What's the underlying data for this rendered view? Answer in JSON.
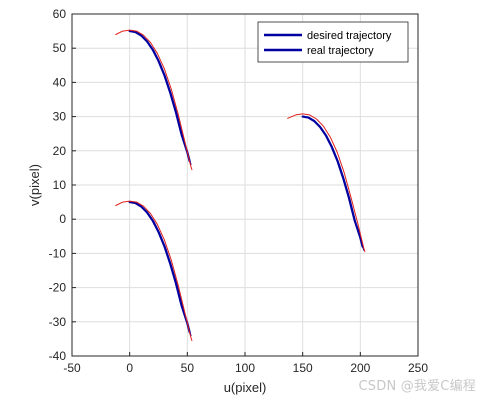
{
  "chart_data": {
    "type": "line",
    "title": "",
    "xlabel": "u(pixel)",
    "ylabel": "v(pixel)",
    "xlim": [
      -50,
      250
    ],
    "ylim": [
      -40,
      60
    ],
    "xticks": [
      -50,
      0,
      50,
      100,
      150,
      200,
      250
    ],
    "yticks": [
      -40,
      -30,
      -20,
      -10,
      0,
      10,
      20,
      30,
      40,
      50,
      60
    ],
    "grid": true,
    "legend_position": "top-right",
    "series": [
      {
        "name": "desired trajectory",
        "color": "#0000a0",
        "segments": [
          {
            "x": [
              0,
              5,
              10,
              15,
              20,
              25,
              30,
              35,
              40,
              45,
              50,
              52
            ],
            "y": [
              55,
              54.7,
              53.7,
              52,
              49.6,
              46.3,
              42.2,
              37.2,
              31.4,
              24.7,
              19.6,
              17
            ]
          },
          {
            "x": [
              0,
              5,
              10,
              15,
              20,
              25,
              30,
              35,
              40,
              45,
              50,
              52
            ],
            "y": [
              5,
              4.7,
              3.7,
              2,
              -0.4,
              -3.7,
              -7.8,
              -12.8,
              -18.6,
              -25.3,
              -30.4,
              -33
            ]
          },
          {
            "x": [
              150,
              155,
              160,
              165,
              170,
              175,
              180,
              185,
              190,
              195,
              200,
              202
            ],
            "y": [
              30,
              29.7,
              28.7,
              27,
              24.6,
              21.3,
              17.2,
              12.2,
              6.4,
              -0.3,
              -5.4,
              -8
            ]
          }
        ]
      },
      {
        "name": "real trajectory",
        "color": "#0000a0",
        "segments": [
          {
            "x": [
              1,
              6,
              11,
              16,
              21,
              26,
              31,
              36,
              41,
              46,
              51,
              53
            ],
            "y": [
              55,
              54.6,
              53.5,
              51.7,
              49.2,
              45.8,
              41.6,
              36.5,
              30.6,
              23.8,
              18.5,
              16
            ]
          },
          {
            "x": [
              1,
              6,
              11,
              16,
              21,
              26,
              31,
              36,
              41,
              46,
              51,
              53
            ],
            "y": [
              5,
              4.6,
              3.5,
              1.7,
              -0.8,
              -4.2,
              -8.4,
              -13.5,
              -19.4,
              -26.2,
              -31.5,
              -34
            ]
          },
          {
            "x": [
              151,
              156,
              161,
              166,
              171,
              176,
              181,
              186,
              191,
              196,
              201,
              203
            ],
            "y": [
              30,
              29.6,
              28.5,
              26.7,
              24.2,
              20.8,
              16.6,
              11.5,
              5.6,
              -1.2,
              -6.5,
              -9
            ]
          }
        ]
      },
      {
        "color": "#e0201a",
        "segments": [
          {
            "x": [
              -12,
              -6,
              0,
              6,
              12,
              18,
              24,
              30,
              36,
              42,
              48,
              53,
              54
            ],
            "y": [
              54,
              55,
              55.3,
              55,
              53.8,
              51.7,
              48.5,
              44,
              38.1,
              30.8,
              22.5,
              15.5,
              14.5
            ]
          },
          {
            "x": [
              -12,
              -6,
              0,
              6,
              12,
              18,
              24,
              30,
              36,
              42,
              48,
              53,
              54
            ],
            "y": [
              4,
              5,
              5.3,
              5,
              3.8,
              1.7,
              -1.5,
              -6,
              -11.9,
              -19.2,
              -27.5,
              -34.5,
              -35.5
            ]
          },
          {
            "x": [
              137,
              144,
              150,
              156,
              162,
              168,
              174,
              180,
              186,
              192,
              198,
              203,
              204
            ],
            "y": [
              29.5,
              30.5,
              30.8,
              30.5,
              29.3,
              27.2,
              24,
              19.5,
              13.6,
              6.3,
              -1.5,
              -8.5,
              -9.5
            ]
          }
        ]
      }
    ]
  },
  "watermark_text": "CSDN @我爱C编程"
}
